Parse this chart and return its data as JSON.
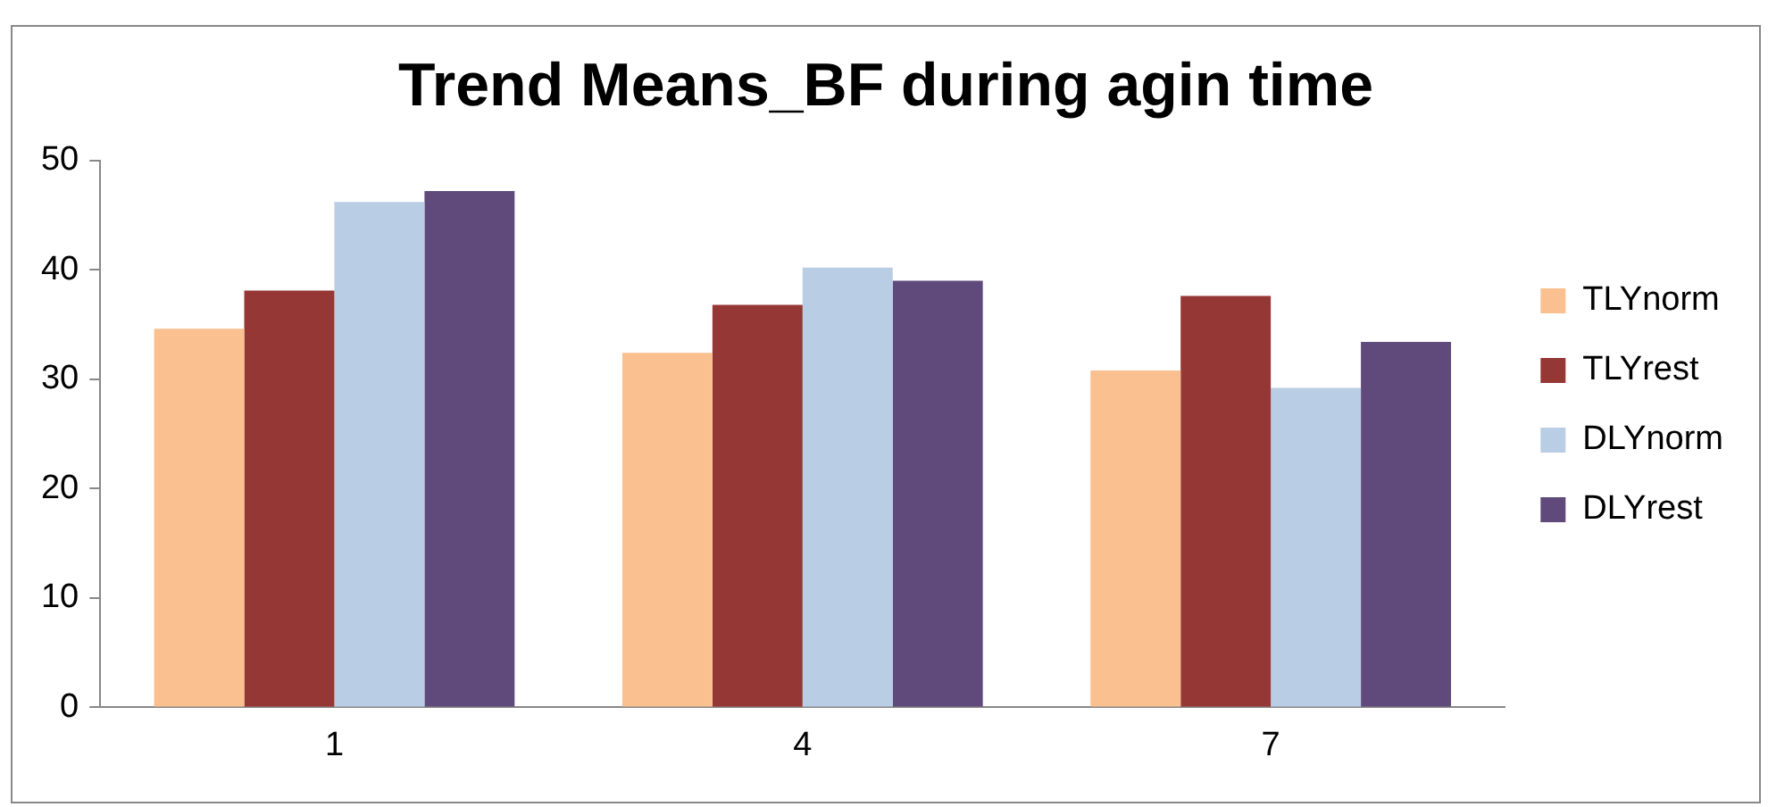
{
  "chart_data": {
    "type": "bar",
    "title": "Trend Means_BF during agin time",
    "categories": [
      "1",
      "4",
      "7"
    ],
    "series": [
      {
        "name": "TLYnorm",
        "color": "#fac090",
        "values": [
          34.6,
          32.4,
          30.8
        ]
      },
      {
        "name": "TLYrest",
        "color": "#953735",
        "values": [
          38.1,
          36.8,
          37.6
        ]
      },
      {
        "name": "DLYnorm",
        "color": "#b9cde5",
        "values": [
          46.2,
          40.2,
          29.2
        ]
      },
      {
        "name": "DLYrest",
        "color": "#604a7b",
        "values": [
          47.2,
          39.0,
          33.4
        ]
      }
    ],
    "ylim": [
      0,
      50
    ],
    "yticks": [
      0,
      10,
      20,
      30,
      40,
      50
    ],
    "grid": false,
    "legend": "right"
  }
}
